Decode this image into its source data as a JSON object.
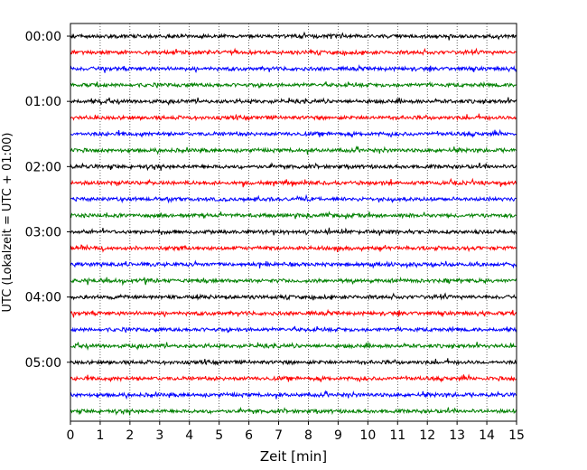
{
  "chart_data": {
    "type": "line",
    "title": "",
    "xlabel": "Zeit  [min]",
    "ylabel": "UTC (Lokalzeit = UTC + 01:00)",
    "xlim": [
      0,
      15
    ],
    "x_ticks": [
      0,
      1,
      2,
      3,
      4,
      5,
      6,
      7,
      8,
      9,
      10,
      11,
      12,
      13,
      14,
      15
    ],
    "y_tick_labels": [
      "00:00",
      "01:00",
      "02:00",
      "03:00",
      "04:00",
      "05:00"
    ],
    "trace_interval_minutes": 15,
    "trace_count": 24,
    "grid": {
      "vertical": true,
      "style": "dotted"
    },
    "trace_colors": [
      "#000000",
      "#ff0000",
      "#0000ff",
      "#008000"
    ],
    "series": "seismogram-style noise traces, one per 15-minute window from 00:00 to 05:45 UTC, colors cycling black, red, blue, green"
  }
}
